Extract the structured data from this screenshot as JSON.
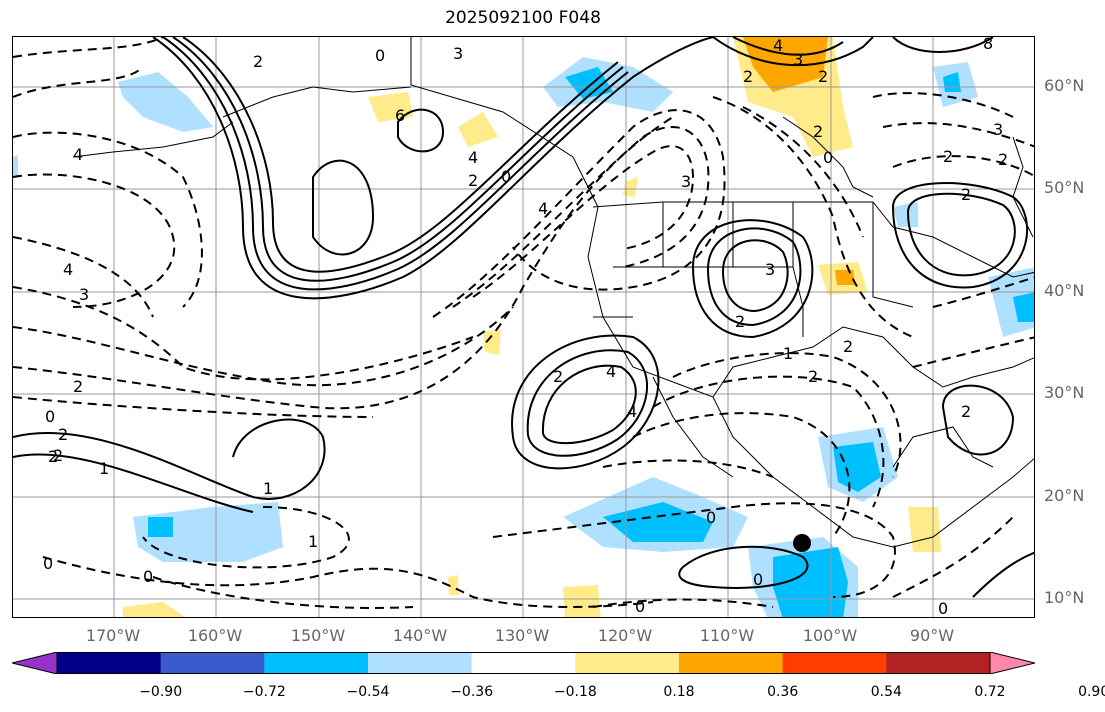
{
  "title": "2025092100 F048",
  "lat_labels": [
    "60°N",
    "50°N",
    "40°N",
    "30°N",
    "20°N",
    "10°N"
  ],
  "lon_labels": [
    "170°W",
    "160°W",
    "150°W",
    "140°W",
    "130°W",
    "120°W",
    "110°W",
    "100°W",
    "90°W"
  ],
  "colorbar": {
    "colors": [
      "#9932cc",
      "#00008b",
      "#3a5bcc",
      "#00bfff",
      "#b0e0ff",
      "#ffffff",
      "#ffeb8a",
      "#ffa500",
      "#ff3d00",
      "#b22222",
      "#ff88aa"
    ],
    "ticks": [
      "−0.90",
      "−0.72",
      "−0.54",
      "−0.36",
      "−0.18",
      "0.18",
      "0.36",
      "0.54",
      "0.72",
      "0.90"
    ]
  },
  "contour_labels": [
    "2",
    "0",
    "3",
    "4",
    "3",
    "4",
    "3",
    "8",
    "4",
    "6",
    "2",
    "0",
    "4",
    "2",
    "4",
    "3",
    "2",
    "2",
    "2",
    "2",
    "2",
    "4",
    "4",
    "3",
    "2",
    "2",
    "3",
    "2",
    "2",
    "2",
    "0",
    "2",
    "2",
    "0",
    "2",
    "1",
    "1",
    "1",
    "2",
    "0",
    "0",
    "0",
    "1",
    "0",
    "0",
    "0"
  ],
  "colors": {
    "contour": "#000000",
    "grid": "#999999",
    "coast": "#000000"
  }
}
